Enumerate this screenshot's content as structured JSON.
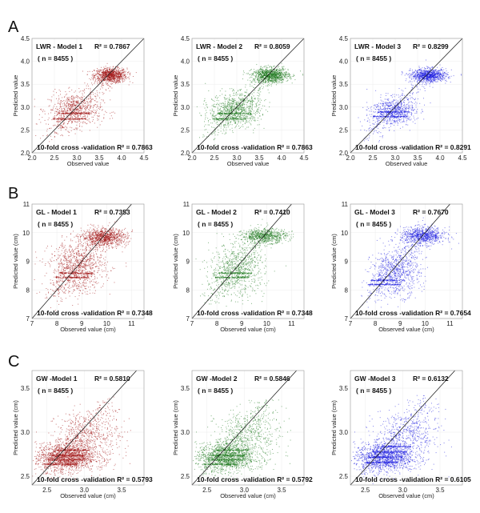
{
  "colors": {
    "model1": "#a01212",
    "model2": "#1f7a1f",
    "model3": "#1e1ee0"
  },
  "rows": [
    {
      "letter": "A"
    },
    {
      "letter": "B"
    },
    {
      "letter": "C"
    }
  ],
  "chart_data": [
    {
      "row": 0,
      "col": 0,
      "type": "scatter",
      "xlabel": "Observed value",
      "ylabel": "Predicted value",
      "xlim": [
        2.0,
        4.5
      ],
      "ylim": [
        2.0,
        4.5
      ],
      "xticks": [
        "2.0",
        "2.5",
        "3.0",
        "3.5",
        "4.0",
        "4.5"
      ],
      "yticks": [
        "2.0",
        "2.5",
        "3.0",
        "3.5",
        "4.0",
        "4.5"
      ],
      "model": "LWR - Model 1",
      "r2": "R² = 0.7867",
      "n": "( n = 8455 )",
      "cv": "10-fold cross -validation R² = 0.7863",
      "color": "model1",
      "clusters": [
        {
          "cx": 3.75,
          "cy": 3.7,
          "sx": 0.18,
          "sy": 0.08,
          "count": 900
        },
        {
          "cx": 2.95,
          "cy": 2.95,
          "sx": 0.3,
          "sy": 0.18,
          "count": 650
        }
      ],
      "bands": [
        2.75,
        2.87
      ]
    },
    {
      "row": 0,
      "col": 1,
      "type": "scatter",
      "xlabel": "Observed value",
      "ylabel": "Predicted value",
      "xlim": [
        2.0,
        4.5
      ],
      "ylim": [
        2.0,
        4.5
      ],
      "xticks": [
        "2.0",
        "2.5",
        "3.0",
        "3.5",
        "4.0",
        "4.5"
      ],
      "yticks": [
        "2.0",
        "2.5",
        "3.0",
        "3.5",
        "4.0",
        "4.5"
      ],
      "model": "LWR - Model 2",
      "r2": "R² = 0.8059",
      "n": "( n = 8455 )",
      "cv": "10-fold cross -validation R² = 0.7863",
      "color": "model2",
      "clusters": [
        {
          "cx": 3.75,
          "cy": 3.7,
          "sx": 0.2,
          "sy": 0.08,
          "count": 1000
        },
        {
          "cx": 2.95,
          "cy": 2.95,
          "sx": 0.28,
          "sy": 0.18,
          "count": 800
        }
      ],
      "bands": [
        2.75,
        2.87
      ]
    },
    {
      "row": 0,
      "col": 2,
      "type": "scatter",
      "xlabel": "Observed value",
      "ylabel": "Predicted value",
      "xlim": [
        2.0,
        4.5
      ],
      "ylim": [
        2.0,
        4.5
      ],
      "xticks": [
        "2.0",
        "2.5",
        "3.0",
        "3.5",
        "4.0",
        "4.5"
      ],
      "yticks": [
        "2.0",
        "2.5",
        "3.0",
        "3.5",
        "4.0",
        "4.5"
      ],
      "model": "LWR - Model 3",
      "r2": "R² = 0.8299",
      "n": "( n = 8455 )",
      "cv": "10-fold cross -validation R² = 0.8291",
      "color": "model3",
      "clusters": [
        {
          "cx": 3.75,
          "cy": 3.7,
          "sx": 0.2,
          "sy": 0.07,
          "count": 900
        },
        {
          "cx": 2.95,
          "cy": 2.92,
          "sx": 0.25,
          "sy": 0.15,
          "count": 600
        }
      ],
      "bands": [
        2.8,
        2.9
      ]
    },
    {
      "row": 1,
      "col": 0,
      "type": "scatter",
      "xlabel": "Observed value (cm)",
      "ylabel": "Predicted value (cm)",
      "xlim": [
        7,
        11.5
      ],
      "ylim": [
        7,
        11
      ],
      "xticks": [
        "7",
        "8",
        "9",
        "10",
        "11"
      ],
      "yticks": [
        "7",
        "8",
        "9",
        "10",
        "11"
      ],
      "model": "GL - Model 1",
      "r2": "R² = 0.7353",
      "n": "( n = 8455 )",
      "cv": "10-fold cross -validation R² = 0.7348",
      "color": "model1",
      "clusters": [
        {
          "cx": 9.9,
          "cy": 9.85,
          "sx": 0.45,
          "sy": 0.15,
          "count": 900
        },
        {
          "cx": 8.8,
          "cy": 8.8,
          "sx": 0.55,
          "sy": 0.45,
          "count": 900
        }
      ],
      "bands": [
        8.45,
        8.6
      ]
    },
    {
      "row": 1,
      "col": 1,
      "type": "scatter",
      "xlabel": "Observed value (cm)",
      "ylabel": "Predicted value (cm)",
      "xlim": [
        7,
        11.5
      ],
      "ylim": [
        7,
        11
      ],
      "xticks": [
        "7",
        "8",
        "9",
        "10",
        "11"
      ],
      "yticks": [
        "7",
        "8",
        "9",
        "10",
        "11"
      ],
      "model": "GL - Model 2",
      "r2": "R² = 0.7410",
      "n": "( n = 8455 )",
      "cv": "10-fold cross -validation R² = 0.7348",
      "color": "model2",
      "clusters": [
        {
          "cx": 9.9,
          "cy": 9.9,
          "sx": 0.45,
          "sy": 0.12,
          "count": 700
        },
        {
          "cx": 8.8,
          "cy": 8.7,
          "sx": 0.55,
          "sy": 0.45,
          "count": 700
        }
      ],
      "bands": [
        8.45,
        8.6
      ]
    },
    {
      "row": 1,
      "col": 2,
      "type": "scatter",
      "xlabel": "Observed value (cm)",
      "ylabel": "Predicted value (cm)",
      "xlim": [
        7,
        11.5
      ],
      "ylim": [
        7,
        11
      ],
      "xticks": [
        "7",
        "8",
        "9",
        "10",
        "11"
      ],
      "yticks": [
        "7",
        "8",
        "9",
        "10",
        "11"
      ],
      "model": "GL - Model 3",
      "r2": "R² = 0.7670",
      "n": "( n = 8455 )",
      "cv": "10-fold cross -validation R² = 0.7654",
      "color": "model3",
      "clusters": [
        {
          "cx": 9.9,
          "cy": 9.9,
          "sx": 0.45,
          "sy": 0.15,
          "count": 800
        },
        {
          "cx": 8.8,
          "cy": 8.6,
          "sx": 0.5,
          "sy": 0.4,
          "count": 700
        }
      ],
      "bands": [
        8.2,
        8.35
      ]
    },
    {
      "row": 2,
      "col": 0,
      "type": "scatter",
      "xlabel": "Observed value (cm)",
      "ylabel": "Predicted value (cm)",
      "xlim": [
        2.3,
        3.8
      ],
      "ylim": [
        2.4,
        3.7
      ],
      "xticks": [
        "2.5",
        "3.0",
        "3.5"
      ],
      "yticks": [
        "2.5",
        "3.0",
        "3.5"
      ],
      "model": "GW -Model 1",
      "r2": "R² = 0.5810",
      "n": "( n = 8455 )",
      "cv": "10-fold cross -validation R² = 0.5793",
      "color": "model1",
      "clusters": [
        {
          "cx": 2.75,
          "cy": 2.72,
          "sx": 0.2,
          "sy": 0.08,
          "count": 1400
        },
        {
          "cx": 3.05,
          "cy": 2.95,
          "sx": 0.22,
          "sy": 0.15,
          "count": 600
        }
      ],
      "bands": [
        2.64,
        2.69,
        2.74,
        2.8
      ]
    },
    {
      "row": 2,
      "col": 1,
      "type": "scatter",
      "xlabel": "Observed value (cm)",
      "ylabel": "Predicted value (cm)",
      "xlim": [
        2.3,
        3.8
      ],
      "ylim": [
        2.4,
        3.7
      ],
      "xticks": [
        "2.5",
        "3.0",
        "3.5"
      ],
      "yticks": [
        "2.5",
        "3.0",
        "3.5"
      ],
      "model": "GW -Model 2",
      "r2": "R² = 0.5846",
      "n": "( n = 8455 )",
      "cv": "10-fold cross -validation R² = 0.5792",
      "color": "model2",
      "clusters": [
        {
          "cx": 2.75,
          "cy": 2.72,
          "sx": 0.2,
          "sy": 0.08,
          "count": 1200
        },
        {
          "cx": 3.05,
          "cy": 2.95,
          "sx": 0.22,
          "sy": 0.15,
          "count": 500
        }
      ],
      "bands": [
        2.64,
        2.69,
        2.74,
        2.8
      ]
    },
    {
      "row": 2,
      "col": 2,
      "type": "scatter",
      "xlabel": "Observed value (cm)",
      "ylabel": "Predicted value (cm)",
      "xlim": [
        2.3,
        3.8
      ],
      "ylim": [
        2.4,
        3.7
      ],
      "xticks": [
        "2.5",
        "3.0",
        "3.5"
      ],
      "yticks": [
        "2.5",
        "3.0",
        "3.5"
      ],
      "model": "GW -Model 3",
      "r2": "R² = 0.6132",
      "n": "( n = 8455 )",
      "cv": "10-fold cross -validation R² = 0.6105",
      "color": "model3",
      "clusters": [
        {
          "cx": 2.75,
          "cy": 2.72,
          "sx": 0.2,
          "sy": 0.08,
          "count": 1200
        },
        {
          "cx": 3.05,
          "cy": 2.95,
          "sx": 0.22,
          "sy": 0.15,
          "count": 500
        }
      ],
      "bands": [
        2.66,
        2.72,
        2.78,
        2.84
      ]
    }
  ]
}
